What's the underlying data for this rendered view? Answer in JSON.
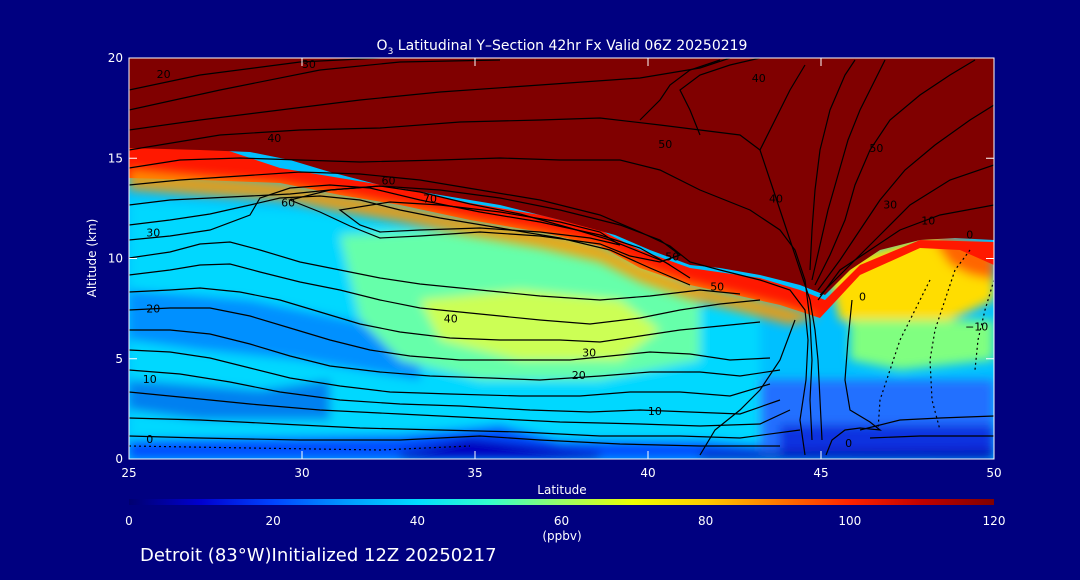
{
  "colors": {
    "background": "#000080",
    "axis": "#ffffff",
    "contour": "#000000"
  },
  "chart_data": {
    "type": "heatmap",
    "title_prefix": "O",
    "title_sub": "3",
    "title_rest": " Latitudinal Y–Section 42hr  Fx Valid 06Z 20250219",
    "xlabel": "Latitude",
    "ylabel": "Altitude (km)",
    "xlim": [
      25,
      50
    ],
    "ylim": [
      0,
      20
    ],
    "xticks": [
      {
        "v": 25,
        "label": "25"
      },
      {
        "v": 30,
        "label": "30"
      },
      {
        "v": 35,
        "label": "35"
      },
      {
        "v": 40,
        "label": "40"
      },
      {
        "v": 45,
        "label": "45"
      },
      {
        "v": 50,
        "label": "50"
      }
    ],
    "yticks": [
      {
        "v": 0,
        "label": "0"
      },
      {
        "v": 5,
        "label": "5"
      },
      {
        "v": 10,
        "label": "10"
      },
      {
        "v": 15,
        "label": "15"
      },
      {
        "v": 20,
        "label": "20"
      }
    ],
    "colorbar": {
      "range": [
        0,
        120
      ],
      "units": "(ppbv)",
      "ticks": [
        {
          "v": 0,
          "label": "0"
        },
        {
          "v": 20,
          "label": "20"
        },
        {
          "v": 40,
          "label": "40"
        },
        {
          "v": 60,
          "label": "60"
        },
        {
          "v": 80,
          "label": "80"
        },
        {
          "v": 100,
          "label": "100"
        },
        {
          "v": 120,
          "label": "120"
        }
      ],
      "stops": [
        {
          "v": 0,
          "color": "#000070"
        },
        {
          "v": 10,
          "color": "#0000d0"
        },
        {
          "v": 20,
          "color": "#0044ff"
        },
        {
          "v": 30,
          "color": "#0099ff"
        },
        {
          "v": 40,
          "color": "#00ddff"
        },
        {
          "v": 50,
          "color": "#33ffcc"
        },
        {
          "v": 60,
          "color": "#99ff66"
        },
        {
          "v": 70,
          "color": "#eeff00"
        },
        {
          "v": 80,
          "color": "#ffcc00"
        },
        {
          "v": 90,
          "color": "#ff7700"
        },
        {
          "v": 100,
          "color": "#ff2200"
        },
        {
          "v": 110,
          "color": "#c00000"
        },
        {
          "v": 120,
          "color": "#800000"
        }
      ]
    },
    "contour_labels": [
      {
        "lat": 26.0,
        "alt": 19.2,
        "label": "20"
      },
      {
        "lat": 30.2,
        "alt": 19.7,
        "label": "30"
      },
      {
        "lat": 29.2,
        "alt": 16.0,
        "label": "40"
      },
      {
        "lat": 32.5,
        "alt": 13.9,
        "label": "60"
      },
      {
        "lat": 29.6,
        "alt": 12.8,
        "label": "60"
      },
      {
        "lat": 33.7,
        "alt": 13.0,
        "label": "70"
      },
      {
        "lat": 25.7,
        "alt": 11.3,
        "label": "30"
      },
      {
        "lat": 25.7,
        "alt": 7.5,
        "label": "20"
      },
      {
        "lat": 25.6,
        "alt": 4.0,
        "label": "10"
      },
      {
        "lat": 25.6,
        "alt": 1.0,
        "label": "0"
      },
      {
        "lat": 34.3,
        "alt": 7.0,
        "label": "40"
      },
      {
        "lat": 38.3,
        "alt": 5.3,
        "label": "30"
      },
      {
        "lat": 38.0,
        "alt": 4.2,
        "label": "20"
      },
      {
        "lat": 40.2,
        "alt": 2.4,
        "label": "10"
      },
      {
        "lat": 42.0,
        "alt": 8.6,
        "label": "50"
      },
      {
        "lat": 40.7,
        "alt": 10.1,
        "label": "50"
      },
      {
        "lat": 40.5,
        "alt": 15.7,
        "label": "50"
      },
      {
        "lat": 43.7,
        "alt": 13.0,
        "label": "40"
      },
      {
        "lat": 46.6,
        "alt": 15.5,
        "label": "50"
      },
      {
        "lat": 47.0,
        "alt": 12.7,
        "label": "30"
      },
      {
        "lat": 48.1,
        "alt": 11.9,
        "label": "10"
      },
      {
        "lat": 49.3,
        "alt": 11.2,
        "label": "0"
      },
      {
        "lat": 49.5,
        "alt": 6.6,
        "label": "−10"
      },
      {
        "lat": 46.2,
        "alt": 8.1,
        "label": "0"
      },
      {
        "lat": 45.8,
        "alt": 0.8,
        "label": "0"
      },
      {
        "lat": 43.2,
        "alt": 19.0,
        "label": "40"
      }
    ]
  },
  "footer": "Detroit (83°W)Initialized 12Z 20250217"
}
